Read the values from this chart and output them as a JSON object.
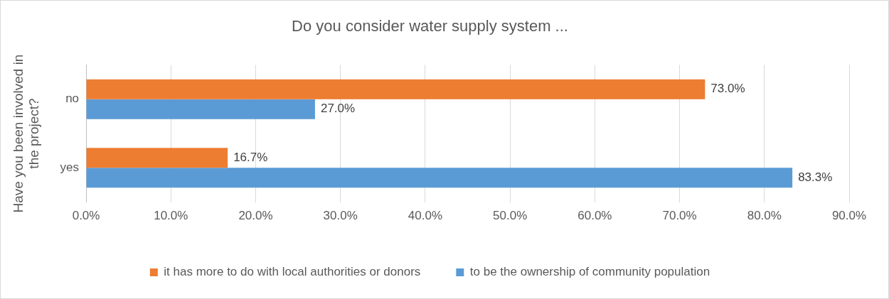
{
  "chart_data": {
    "type": "bar",
    "orientation": "horizontal",
    "title": "Do you consider water supply system ...",
    "ylabel": "Have you been involved in the project?",
    "categories": [
      "no",
      "yes"
    ],
    "series": [
      {
        "name": "it has more to do with local authorities or donors",
        "color": "#ed7d31",
        "values": [
          73.0,
          16.7
        ],
        "value_labels": [
          "73.0%",
          "16.7%"
        ]
      },
      {
        "name": "to be the ownership of community population",
        "color": "#5b9bd5",
        "values": [
          27.0,
          83.3
        ],
        "value_labels": [
          "27.0%",
          "83.3%"
        ]
      }
    ],
    "xlim": [
      0,
      90
    ],
    "xticks": [
      {
        "value": 0,
        "label": "0.0%"
      },
      {
        "value": 10,
        "label": "10.0%"
      },
      {
        "value": 20,
        "label": "20.0%"
      },
      {
        "value": 30,
        "label": "30.0%"
      },
      {
        "value": 40,
        "label": "40.0%"
      },
      {
        "value": 50,
        "label": "50.0%"
      },
      {
        "value": 60,
        "label": "60.0%"
      },
      {
        "value": 70,
        "label": "70.0%"
      },
      {
        "value": 80,
        "label": "80.0%"
      },
      {
        "value": 90,
        "label": "90.0%"
      }
    ],
    "grid": "x",
    "legend": "bottom"
  }
}
